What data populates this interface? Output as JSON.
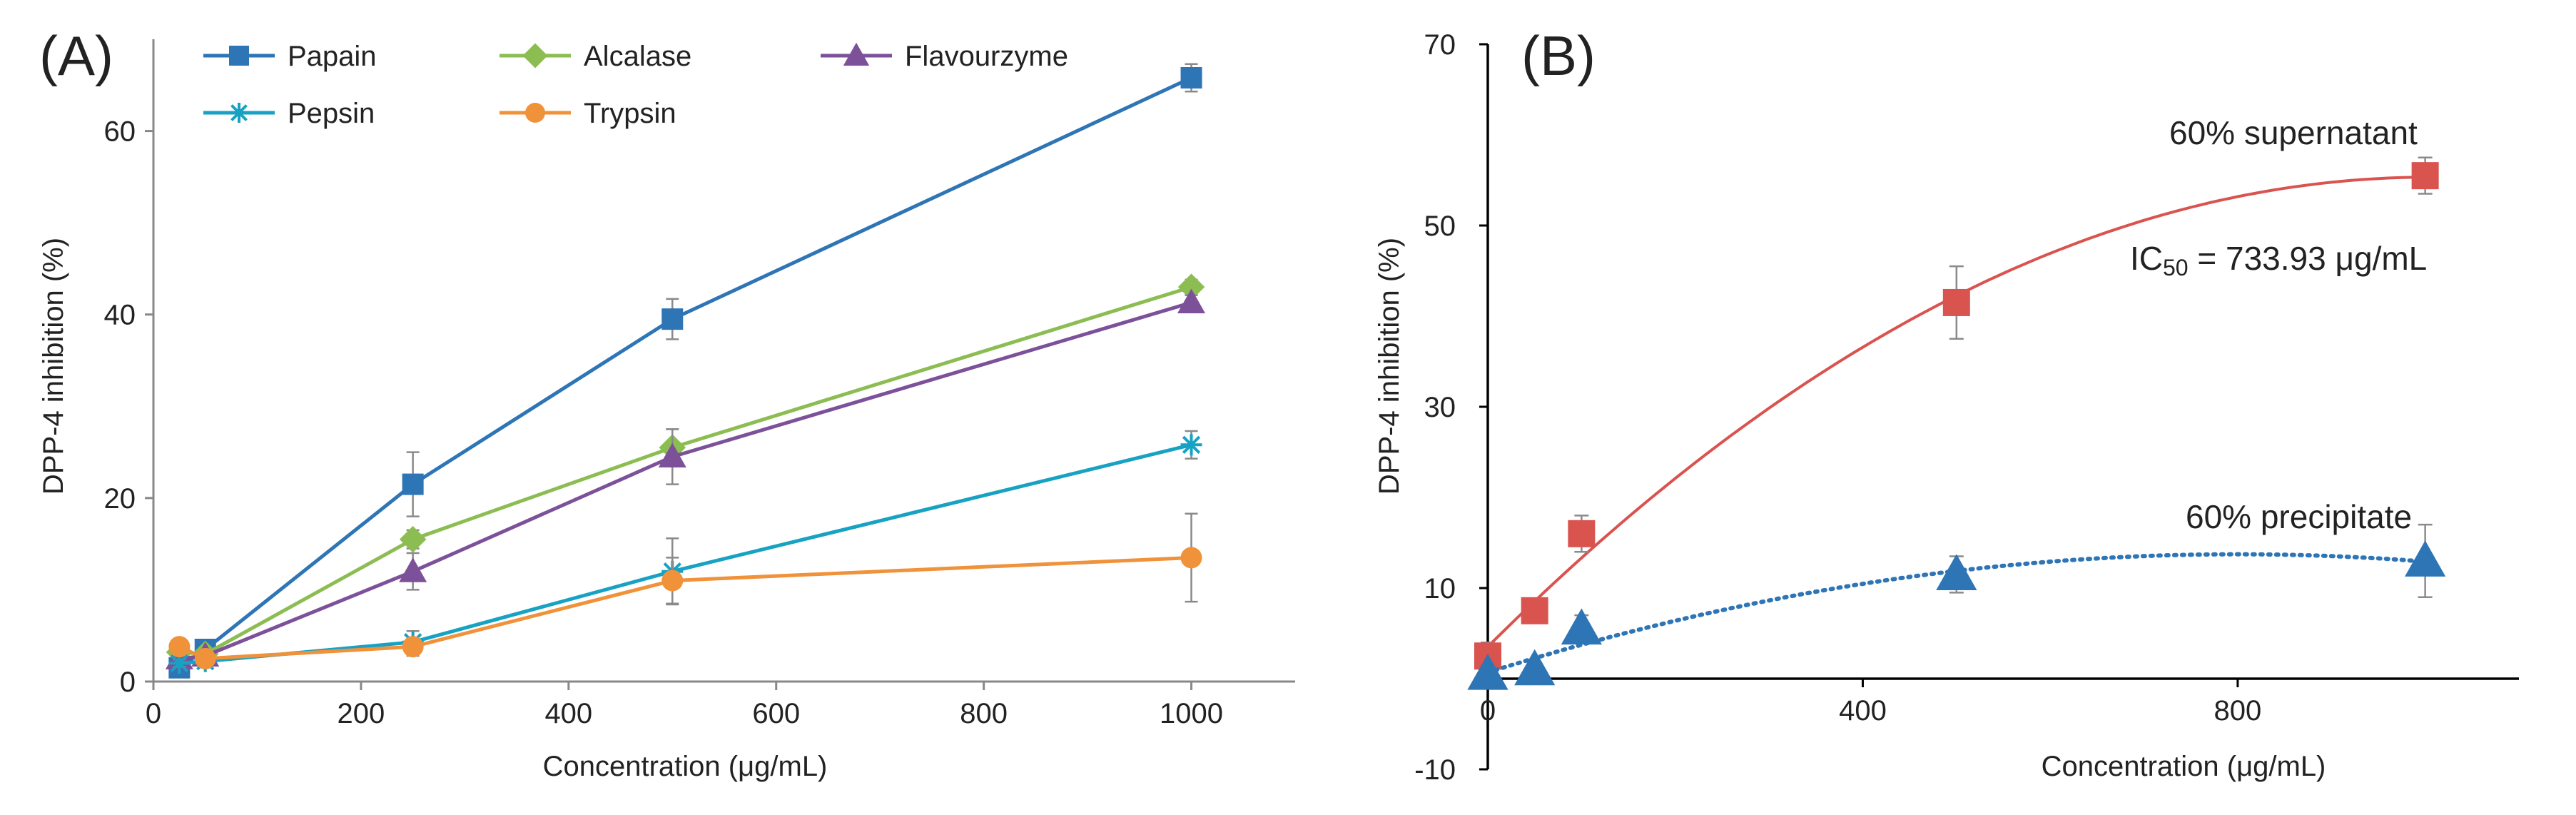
{
  "chart_data": [
    {
      "panel": "(A)",
      "type": "line",
      "xlabel": "Concentration (μg/mL)",
      "ylabel": "DPP-4 inhibition (%)",
      "xlim": [
        0,
        1100
      ],
      "ylim": [
        0,
        70
      ],
      "xticks": [
        "0",
        "200",
        "400",
        "600",
        "800",
        "1000"
      ],
      "yticks": [
        "0",
        "20",
        "40",
        "60"
      ],
      "x": [
        25,
        50,
        250,
        500,
        1000
      ],
      "series": [
        {
          "name": "Papain",
          "color": "#2e75b6",
          "marker": "square",
          "values": [
            1.5,
            3.5,
            21.5,
            39.5,
            65.8
          ],
          "errors": [
            0.6,
            0.8,
            3.5,
            2.2,
            1.5
          ]
        },
        {
          "name": "Alcalase",
          "color": "#8cbd52",
          "marker": "diamond",
          "values": [
            3.2,
            3.0,
            15.5,
            25.5,
            43.0
          ],
          "errors": [
            0.5,
            0.5,
            1.0,
            2.0,
            0.8
          ]
        },
        {
          "name": "Flavourzyme",
          "color": "#7c519a",
          "marker": "triangle",
          "values": [
            2.5,
            2.8,
            12.0,
            24.5,
            41.3
          ],
          "errors": [
            0.5,
            0.5,
            2.0,
            3.0,
            0.8
          ]
        },
        {
          "name": "Pepsin",
          "color": "#17a2c4",
          "marker": "star",
          "values": [
            2.0,
            2.2,
            4.3,
            12.0,
            25.8
          ],
          "errors": [
            0.4,
            0.4,
            1.2,
            3.6,
            1.5
          ]
        },
        {
          "name": "Trypsin",
          "color": "#f0923a",
          "marker": "circle",
          "values": [
            3.8,
            2.5,
            3.8,
            11.0,
            13.5
          ],
          "errors": [
            0.4,
            0.4,
            1.0,
            2.5,
            4.8
          ]
        }
      ],
      "legend": [
        "Papain",
        "Alcalase",
        "Flavourzyme",
        "Pepsin",
        "Trypsin"
      ],
      "legend_position": "top"
    },
    {
      "panel": "(B)",
      "type": "scatter",
      "xlabel": "Concentration (μg/mL)",
      "ylabel": "DPP-4 inhibition (%)",
      "xlim": [
        0,
        1100
      ],
      "ylim": [
        -10,
        70
      ],
      "xticks": [
        "0",
        "400",
        "800"
      ],
      "yticks": [
        "-10",
        "10",
        "30",
        "50",
        "70"
      ],
      "series": [
        {
          "name": "60% supernatant",
          "color": "#d9534f",
          "marker": "square",
          "fit": "solid",
          "x": [
            0,
            50,
            100,
            500,
            1000
          ],
          "values": [
            2.5,
            7.5,
            16.0,
            41.5,
            55.5
          ],
          "errors": [
            1.5,
            1.0,
            2.0,
            4.0,
            2.0
          ]
        },
        {
          "name": "60% precipitate",
          "color": "#2e75b6",
          "marker": "triangle",
          "fit": "dotted",
          "x": [
            0,
            50,
            100,
            500,
            1000
          ],
          "values": [
            0.5,
            1.0,
            5.5,
            11.5,
            13.0
          ],
          "errors": [
            0.5,
            0.5,
            1.5,
            2.0,
            4.0
          ]
        }
      ],
      "annotations": {
        "supernatant_label": "60% supernatant",
        "ic50_prefix": "IC",
        "ic50_sub": "50",
        "ic50_suffix": " = 733.93 μg/mL",
        "precipitate_label": "60% precipitate"
      }
    }
  ]
}
